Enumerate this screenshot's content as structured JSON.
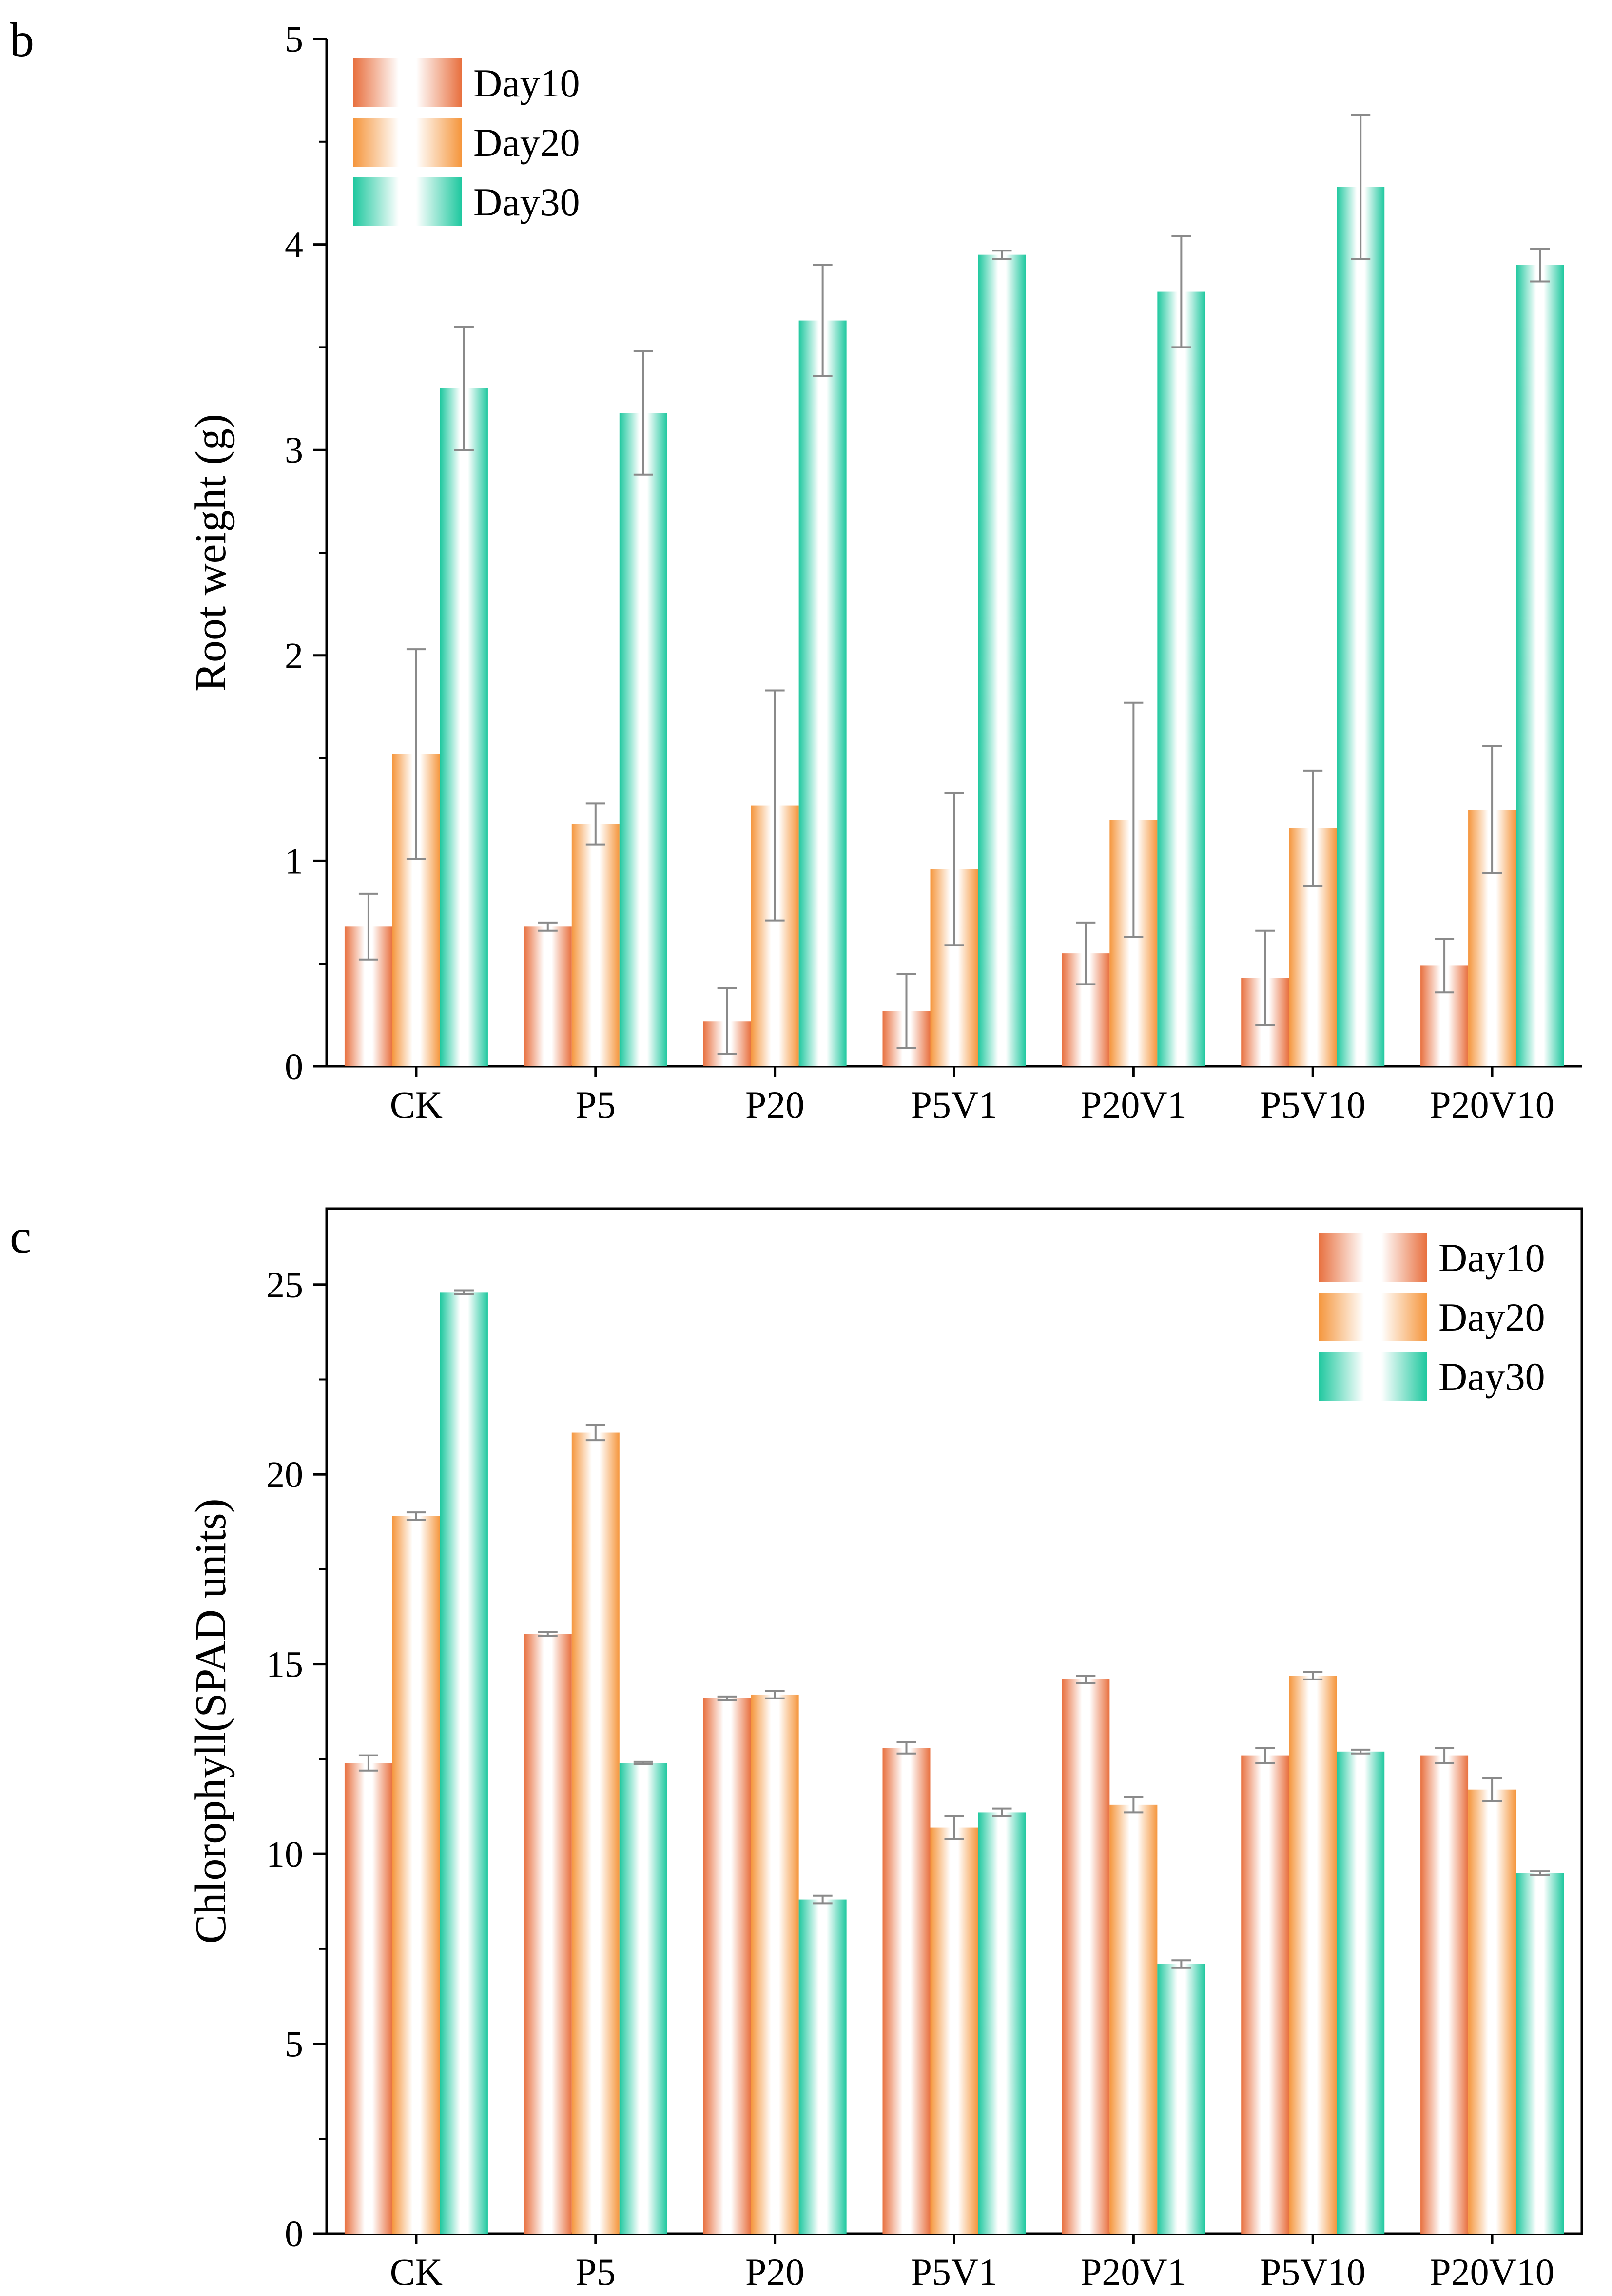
{
  "chart_data": [
    {
      "type": "bar",
      "panel_letter": "b",
      "title": "",
      "xlabel": "",
      "ylabel": "Root weight (g)",
      "ylim": [
        0,
        5
      ],
      "yticks": [
        "0",
        "1",
        "2",
        "3",
        "4",
        "5"
      ],
      "grid": false,
      "legend_position": "top-left",
      "categories": [
        "CK",
        "P5",
        "P20",
        "P5V1",
        "P20V1",
        "P5V10",
        "P20V10"
      ],
      "series": [
        {
          "name": "Day10",
          "color": "#e8703f",
          "values": [
            0.68,
            0.68,
            0.22,
            0.27,
            0.55,
            0.43,
            0.49
          ],
          "errors": [
            0.16,
            0.02,
            0.16,
            0.18,
            0.15,
            0.23,
            0.13
          ]
        },
        {
          "name": "Day20",
          "color": "#f5963d",
          "values": [
            1.52,
            1.18,
            1.27,
            0.96,
            1.2,
            1.16,
            1.25
          ],
          "errors": [
            0.51,
            0.1,
            0.56,
            0.37,
            0.57,
            0.28,
            0.31
          ]
        },
        {
          "name": "Day30",
          "color": "#1fc89f",
          "values": [
            3.3,
            3.18,
            3.63,
            3.95,
            3.77,
            4.28,
            3.9
          ],
          "errors": [
            0.3,
            0.3,
            0.27,
            0.02,
            0.27,
            0.35,
            0.08
          ]
        }
      ]
    },
    {
      "type": "bar",
      "panel_letter": "c",
      "title": "",
      "xlabel": "",
      "ylabel": "Chlorophyll(SPAD units)",
      "ylim": [
        0,
        27
      ],
      "yticks": [
        "0",
        "5",
        "10",
        "15",
        "20",
        "25"
      ],
      "grid": false,
      "legend_position": "top-right",
      "categories": [
        "CK",
        "P5",
        "P20",
        "P5V1",
        "P20V1",
        "P5V10",
        "P20V10"
      ],
      "series": [
        {
          "name": "Day10",
          "color": "#e8703f",
          "values": [
            12.4,
            15.8,
            14.1,
            12.8,
            14.6,
            12.6,
            12.6
          ],
          "errors": [
            0.2,
            0.05,
            0.05,
            0.15,
            0.1,
            0.2,
            0.2
          ]
        },
        {
          "name": "Day20",
          "color": "#f5963d",
          "values": [
            18.9,
            21.1,
            14.2,
            10.7,
            11.3,
            14.7,
            11.7
          ],
          "errors": [
            0.1,
            0.2,
            0.1,
            0.3,
            0.2,
            0.1,
            0.3
          ]
        },
        {
          "name": "Day30",
          "color": "#1fc89f",
          "values": [
            24.8,
            12.4,
            8.8,
            11.1,
            7.1,
            12.7,
            9.5
          ],
          "errors": [
            0.05,
            0.03,
            0.1,
            0.1,
            0.1,
            0.05,
            0.05
          ]
        }
      ]
    }
  ]
}
